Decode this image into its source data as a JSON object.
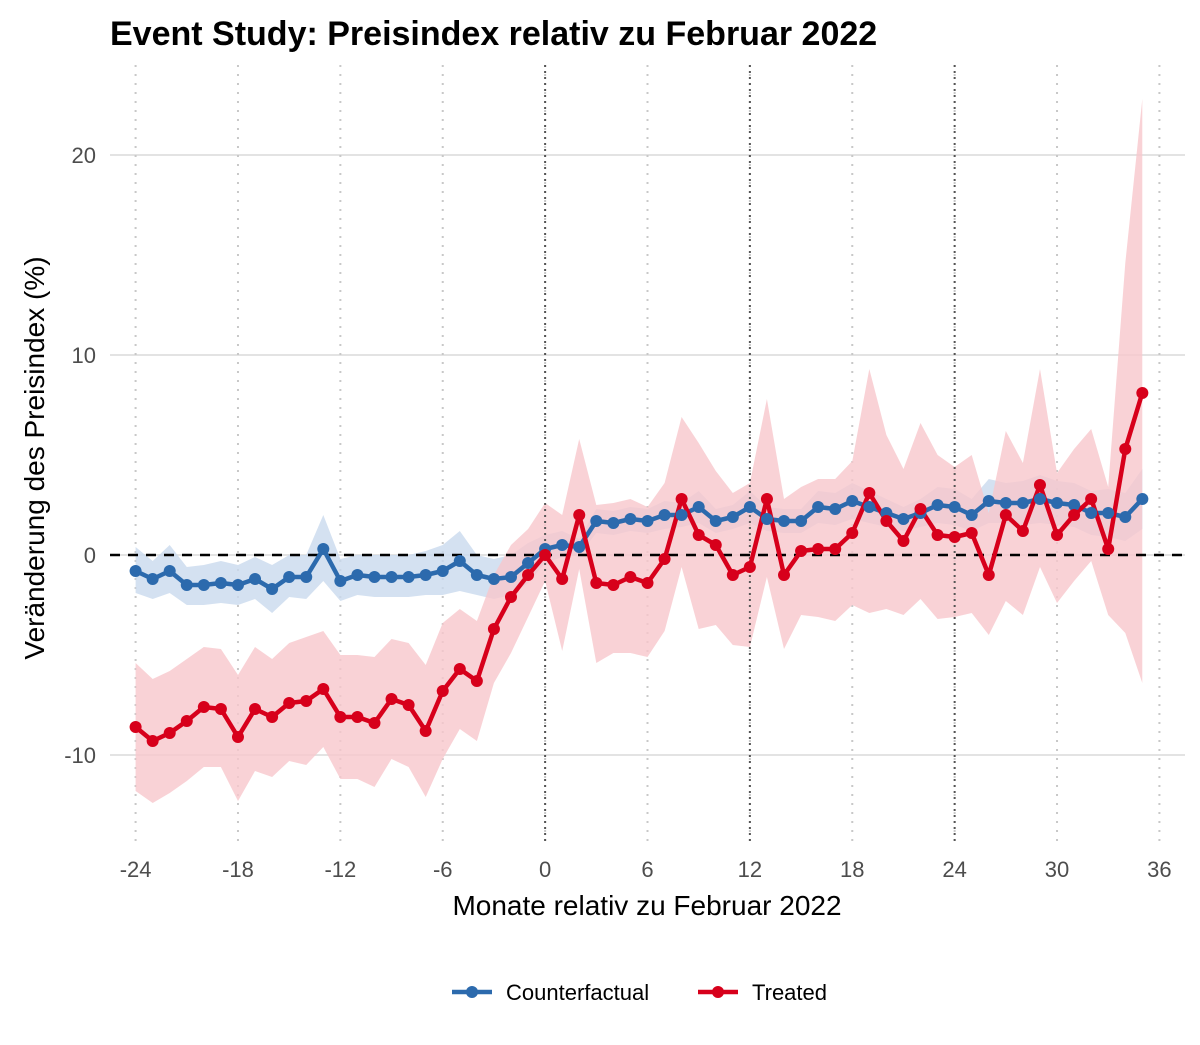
{
  "chart_data": {
    "type": "line",
    "title": "Event Study: Preisindex relativ zu Februar 2022",
    "xlabel": "Monate relativ zu Februar 2022",
    "ylabel": "Veränderung des Preisindex (%)",
    "xlim": [
      -25.5,
      37.5
    ],
    "ylim": [
      -14.5,
      24.5
    ],
    "x_ticks": [
      -24,
      -18,
      -12,
      -6,
      0,
      6,
      12,
      18,
      24,
      30,
      36
    ],
    "x_tick_labels": [
      "-24",
      "-18",
      "-12",
      "-6",
      "0",
      "6",
      "12",
      "18",
      "24",
      "30",
      "36"
    ],
    "y_ticks": [
      -10,
      0,
      10,
      20
    ],
    "y_tick_labels": [
      "-10",
      "0",
      "10",
      "20"
    ],
    "reference_line_y": 0,
    "dotted_vlines": [
      0,
      12,
      24
    ],
    "grid": "horizontal major lines, dotted vertical lines at x ticks",
    "legend_position": "bottom",
    "x": [
      -24,
      -23,
      -22,
      -21,
      -20,
      -19,
      -18,
      -17,
      -16,
      -15,
      -14,
      -13,
      -12,
      -11,
      -10,
      -9,
      -8,
      -7,
      -6,
      -5,
      -4,
      -3,
      -2,
      -1,
      0,
      1,
      2,
      3,
      4,
      5,
      6,
      7,
      8,
      9,
      10,
      11,
      12,
      13,
      14,
      15,
      16,
      17,
      18,
      19,
      20,
      21,
      22,
      23,
      24,
      25,
      26,
      27,
      28,
      29,
      30,
      31,
      32,
      33,
      34,
      35
    ],
    "series": [
      {
        "name": "Counterfactual",
        "color": "#2c6aad",
        "band_color": "#c9d9ed",
        "values": [
          -0.8,
          -1.2,
          -0.8,
          -1.5,
          -1.5,
          -1.4,
          -1.5,
          -1.2,
          -1.7,
          -1.1,
          -1.1,
          0.3,
          -1.3,
          -1.0,
          -1.1,
          -1.1,
          -1.1,
          -1.0,
          -0.8,
          -0.3,
          -1.0,
          -1.2,
          -1.1,
          -0.4,
          0.3,
          0.5,
          0.4,
          1.7,
          1.6,
          1.8,
          1.7,
          2.0,
          2.0,
          2.4,
          1.7,
          1.9,
          2.4,
          1.8,
          1.7,
          1.7,
          2.4,
          2.3,
          2.7,
          2.4,
          2.1,
          1.8,
          2.1,
          2.5,
          2.4,
          2.0,
          2.7,
          2.6,
          2.6,
          2.8,
          2.6,
          2.5,
          2.1,
          2.1,
          1.9,
          2.8
        ],
        "lower": [
          -1.9,
          -2.2,
          -1.9,
          -2.5,
          -2.5,
          -2.4,
          -2.5,
          -2.2,
          -2.9,
          -2.1,
          -2.2,
          -1.3,
          -2.3,
          -2.0,
          -2.1,
          -2.1,
          -2.1,
          -2.0,
          -2.0,
          -1.8,
          -2.0,
          -2.2,
          -2.0,
          -1.4,
          -0.4,
          -0.1,
          0.0,
          1.1,
          1.0,
          1.2,
          1.1,
          1.3,
          1.4,
          1.6,
          1.1,
          1.3,
          1.6,
          1.2,
          1.1,
          1.1,
          1.6,
          1.5,
          1.8,
          1.6,
          1.4,
          1.2,
          1.4,
          1.6,
          1.5,
          1.2,
          1.6,
          1.6,
          1.5,
          1.6,
          1.5,
          1.4,
          1.0,
          0.9,
          0.7,
          1.3
        ],
        "upper": [
          0.4,
          -0.3,
          0.5,
          -0.6,
          -0.5,
          -0.3,
          -0.5,
          -0.1,
          -0.5,
          0.0,
          0.0,
          2.0,
          -0.2,
          0.0,
          0.0,
          0.0,
          0.0,
          0.2,
          0.5,
          1.2,
          0.0,
          -0.2,
          0.0,
          0.6,
          1.0,
          1.2,
          0.8,
          2.3,
          2.2,
          2.4,
          2.3,
          2.7,
          2.6,
          3.2,
          2.3,
          2.5,
          3.2,
          2.4,
          2.3,
          2.3,
          3.2,
          3.1,
          3.6,
          3.2,
          2.8,
          2.4,
          2.8,
          3.4,
          3.3,
          2.8,
          3.8,
          3.6,
          3.7,
          4.0,
          3.7,
          3.6,
          3.2,
          3.3,
          3.1,
          4.3
        ]
      },
      {
        "name": "Treated",
        "color": "#d7001b",
        "band_color": "#f7c7cc",
        "values": [
          -8.6,
          -9.3,
          -8.9,
          -8.3,
          -7.6,
          -7.7,
          -9.1,
          -7.7,
          -8.1,
          -7.4,
          -7.3,
          -6.7,
          -8.1,
          -8.1,
          -8.4,
          -7.2,
          -7.5,
          -8.8,
          -6.8,
          -5.7,
          -6.3,
          -3.7,
          -2.1,
          -1.0,
          0.0,
          -1.2,
          2.0,
          -1.4,
          -1.5,
          -1.1,
          -1.4,
          -0.2,
          2.8,
          1.0,
          0.5,
          -1.0,
          -0.6,
          2.8,
          -1.0,
          0.2,
          0.3,
          0.3,
          1.1,
          3.1,
          1.7,
          0.7,
          2.3,
          1.0,
          0.9,
          1.1,
          -1.0,
          2.0,
          1.2,
          3.5,
          1.0,
          2.0,
          2.8,
          0.3,
          5.3,
          8.1
        ],
        "lower": [
          -11.8,
          -12.4,
          -11.9,
          -11.3,
          -10.6,
          -10.6,
          -12.3,
          -10.8,
          -11.1,
          -10.3,
          -10.5,
          -9.6,
          -11.2,
          -11.2,
          -11.6,
          -10.2,
          -10.6,
          -12.1,
          -10.2,
          -8.7,
          -9.3,
          -6.4,
          -4.9,
          -3.1,
          -1.3,
          -4.8,
          -0.7,
          -5.4,
          -4.9,
          -4.9,
          -5.1,
          -3.8,
          -0.6,
          -3.7,
          -3.5,
          -4.5,
          -4.6,
          -1.1,
          -4.7,
          -3.0,
          -3.1,
          -3.3,
          -2.5,
          -2.9,
          -2.7,
          -3.0,
          -2.2,
          -3.2,
          -3.1,
          -2.9,
          -4.0,
          -2.3,
          -3.0,
          -0.6,
          -2.4,
          -1.3,
          -0.3,
          -3.0,
          -3.9,
          -6.4
        ],
        "upper": [
          -5.4,
          -6.2,
          -5.8,
          -5.2,
          -4.6,
          -4.7,
          -6.0,
          -4.6,
          -5.2,
          -4.4,
          -4.1,
          -3.8,
          -5.0,
          -5.0,
          -5.1,
          -4.2,
          -4.4,
          -5.5,
          -3.4,
          -2.7,
          -3.3,
          -1.0,
          0.5,
          1.3,
          2.6,
          2.0,
          5.8,
          2.5,
          2.6,
          2.8,
          2.4,
          3.6,
          6.9,
          5.6,
          4.2,
          3.1,
          3.6,
          7.8,
          2.8,
          3.4,
          3.8,
          3.8,
          4.7,
          9.3,
          6.0,
          4.3,
          6.6,
          5.0,
          4.4,
          5.0,
          2.1,
          6.2,
          4.6,
          9.3,
          4.1,
          5.3,
          6.3,
          3.4,
          14.6,
          22.8
        ]
      }
    ]
  }
}
